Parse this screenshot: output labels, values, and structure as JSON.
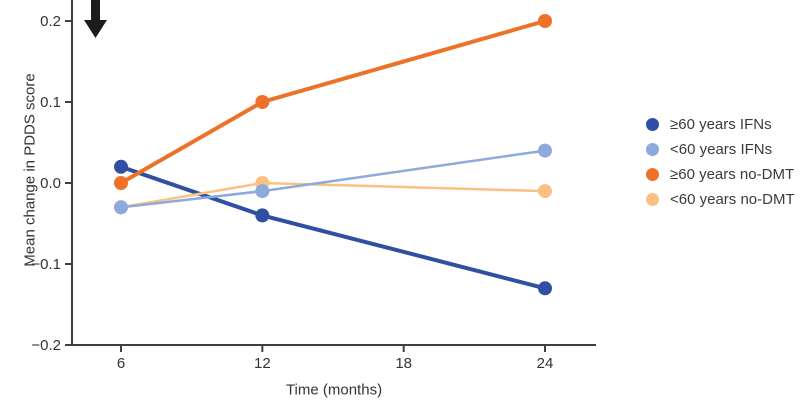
{
  "figure": {
    "background": "#ffffff",
    "axis_color": "#3f3f3f",
    "text_color": "#333333",
    "arrow_color": "#1c1c1c"
  },
  "chart_data": {
    "type": "line",
    "title": "",
    "xlabel": "Time (months)",
    "ylabel": "Mean change in PDDS score",
    "x": [
      6,
      12,
      24
    ],
    "x_ticks": [
      {
        "label": "6",
        "value": 6
      },
      {
        "label": "12",
        "value": 12
      },
      {
        "label": "18",
        "value": 18
      },
      {
        "label": "24",
        "value": 24
      }
    ],
    "y_ticks": [
      {
        "label": "0.2",
        "value": 0.2
      },
      {
        "label": "0.1",
        "value": 0.1
      },
      {
        "label": "0.0",
        "value": 0.0
      },
      {
        "label": "−0.1",
        "value": -0.1
      },
      {
        "label": "−0.2",
        "value": -0.2
      }
    ],
    "ylim": [
      -0.2,
      0.2
    ],
    "grid": false,
    "legend_position": "right",
    "series": [
      {
        "name": "≥60 years IFNs",
        "color": "#2f4fa3",
        "values": [
          0.02,
          -0.04,
          -0.13
        ],
        "line_width": 4
      },
      {
        "name": "<60 years IFNs",
        "color": "#8ea9db",
        "values": [
          -0.03,
          -0.01,
          0.04
        ],
        "line_width": 2.5
      },
      {
        "name": "≥60 years no-DMT",
        "color": "#ee7128",
        "values": [
          0.0,
          0.1,
          0.2
        ],
        "line_width": 4
      },
      {
        "name": "<60 years no-DMT",
        "color": "#fbc183",
        "values": [
          -0.03,
          0.0,
          -0.01
        ],
        "line_width": 2.5
      }
    ],
    "annotations": [
      {
        "type": "down-arrow",
        "location": "top-left-of-plot"
      }
    ]
  }
}
